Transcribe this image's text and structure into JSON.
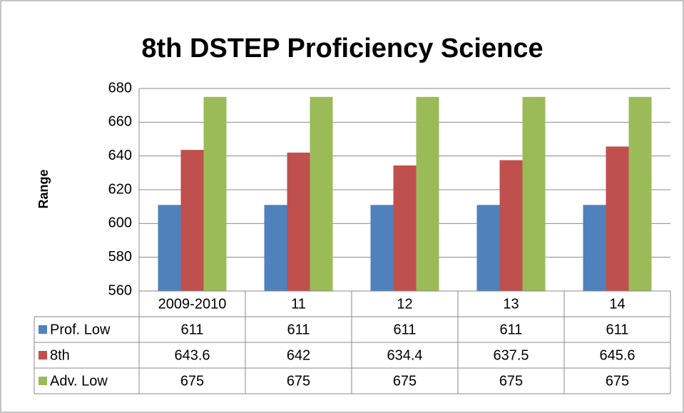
{
  "chart_data": {
    "type": "bar",
    "title": "8th DSTEP Proficiency Science",
    "y_label": "Range",
    "categories": [
      "2009-2010",
      "11",
      "12",
      "13",
      "14"
    ],
    "series": [
      {
        "name": "Prof. Low",
        "color": "#4f81bd",
        "values": [
          611,
          611,
          611,
          611,
          611
        ]
      },
      {
        "name": "8th",
        "color": "#c0504d",
        "values": [
          643.6,
          642,
          634.4,
          637.5,
          645.6
        ]
      },
      {
        "name": "Adv. Low",
        "color": "#9bbb59",
        "values": [
          675,
          675,
          675,
          675,
          675
        ]
      }
    ],
    "ylim": [
      560,
      680
    ],
    "yticks": [
      560,
      580,
      600,
      620,
      640,
      660,
      680
    ],
    "grid": true,
    "data_table": true
  }
}
